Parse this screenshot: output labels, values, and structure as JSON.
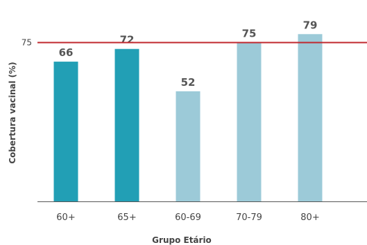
{
  "chart_data": {
    "type": "bar",
    "title": "",
    "xlabel": "Grupo Etário",
    "ylabel": "Cobertura vacinal (%)",
    "categories": [
      "60+",
      "65+",
      "60-69",
      "70-79",
      "80+"
    ],
    "values": [
      66,
      72,
      52,
      75,
      79
    ],
    "data_labels": [
      "66",
      "72",
      "52",
      "75",
      "79"
    ],
    "bar_colors": [
      "#229fb5",
      "#229fb5",
      "#9ccad8",
      "#9ccad8",
      "#9ccad8"
    ],
    "ylim": [
      0,
      84
    ],
    "reference_line": {
      "value": 75,
      "label": "75",
      "color": "#c0272d"
    },
    "grid": false,
    "legend": "none"
  }
}
